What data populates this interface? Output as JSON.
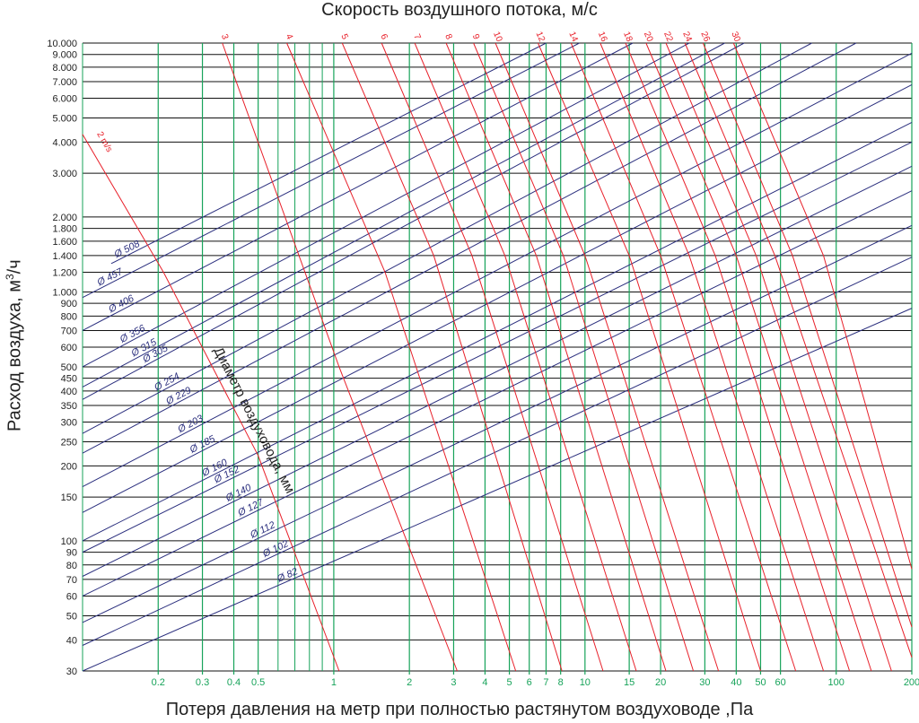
{
  "chart_data": {
    "type": "line",
    "title": "Скорость воздушного потока, м/с",
    "xlabel": "Потеря давления на метр при полностью растянутом воздуховоде ,Па",
    "ylabel": {
      "prefix": "Расход воздуха, м",
      "sup": "3",
      "suffix": "/ч"
    },
    "diameter_axis_label": "Диаметр воздуховода, мм",
    "x_scale": "log",
    "y_scale": "log",
    "xlim": [
      0.1,
      200
    ],
    "ylim": [
      30,
      10000
    ],
    "grid": true,
    "x_ticks": [
      0.2,
      0.3,
      0.4,
      0.5,
      1,
      2,
      3,
      4,
      5,
      6,
      7,
      8,
      10,
      15,
      20,
      30,
      40,
      50,
      60,
      100,
      200
    ],
    "x_minor_ticks": [
      0.6,
      0.7,
      0.8,
      0.9
    ],
    "y_ticks": [
      {
        "value": 30,
        "label": "30"
      },
      {
        "value": 40,
        "label": "40"
      },
      {
        "value": 50,
        "label": "50"
      },
      {
        "value": 60,
        "label": "60"
      },
      {
        "value": 70,
        "label": "70"
      },
      {
        "value": 80,
        "label": "80"
      },
      {
        "value": 90,
        "label": "90"
      },
      {
        "value": 100,
        "label": "100"
      },
      {
        "value": 150,
        "label": "150"
      },
      {
        "value": 200,
        "label": "200"
      },
      {
        "value": 250,
        "label": "250"
      },
      {
        "value": 300,
        "label": "300"
      },
      {
        "value": 350,
        "label": "350"
      },
      {
        "value": 400,
        "label": "400"
      },
      {
        "value": 450,
        "label": "450"
      },
      {
        "value": 500,
        "label": "500"
      },
      {
        "value": 600,
        "label": "600"
      },
      {
        "value": 700,
        "label": "700"
      },
      {
        "value": 800,
        "label": "800"
      },
      {
        "value": 900,
        "label": "900"
      },
      {
        "value": 1000,
        "label": "1.000"
      },
      {
        "value": 1200,
        "label": "1.200"
      },
      {
        "value": 1400,
        "label": "1.400"
      },
      {
        "value": 1600,
        "label": "1.600"
      },
      {
        "value": 1800,
        "label": "1.800"
      },
      {
        "value": 2000,
        "label": "2.000"
      },
      {
        "value": 3000,
        "label": "3.000"
      },
      {
        "value": 4000,
        "label": "4.000"
      },
      {
        "value": 5000,
        "label": "5.000"
      },
      {
        "value": 6000,
        "label": "6.000"
      },
      {
        "value": 7000,
        "label": "7.000"
      },
      {
        "value": 8000,
        "label": "8.000"
      },
      {
        "value": 9000,
        "label": "9.000"
      },
      {
        "value": 10000,
        "label": "10.000"
      }
    ],
    "velocity_series": [
      {
        "name": "2 m/s",
        "points": [
          [
            0.1,
            4300
          ],
          [
            0.21,
            1200
          ],
          [
            0.5,
            220
          ],
          [
            1.05,
            30
          ]
        ]
      },
      {
        "name": "3",
        "points": [
          [
            0.36,
            10000
          ],
          [
            1.05,
            500
          ],
          [
            3.1,
            30
          ]
        ]
      },
      {
        "name": "4",
        "points": [
          [
            0.65,
            10000
          ],
          [
            1.6,
            1200
          ],
          [
            5.3,
            30
          ]
        ]
      },
      {
        "name": "5",
        "points": [
          [
            1.08,
            10000
          ],
          [
            2.5,
            1400
          ],
          [
            8.1,
            30
          ]
        ]
      },
      {
        "name": "6",
        "points": [
          [
            1.55,
            10000
          ],
          [
            3.55,
            1400
          ],
          [
            11.8,
            30
          ]
        ]
      },
      {
        "name": "7",
        "points": [
          [
            2.1,
            10000
          ],
          [
            4.8,
            1400
          ],
          [
            16,
            30
          ]
        ]
      },
      {
        "name": "8",
        "points": [
          [
            2.8,
            10000
          ],
          [
            6.4,
            1400
          ],
          [
            21,
            30
          ]
        ]
      },
      {
        "name": "9",
        "points": [
          [
            3.6,
            10000
          ],
          [
            8.2,
            1400
          ],
          [
            27,
            30
          ]
        ]
      },
      {
        "name": "10",
        "points": [
          [
            4.4,
            10000
          ],
          [
            10,
            1400
          ],
          [
            34,
            30
          ]
        ]
      },
      {
        "name": "12",
        "points": [
          [
            6.5,
            10000
          ],
          [
            15,
            1400
          ],
          [
            50,
            30
          ]
        ]
      },
      {
        "name": "14",
        "points": [
          [
            8.8,
            10000
          ],
          [
            20,
            1400
          ],
          [
            69,
            30
          ]
        ]
      },
      {
        "name": "16",
        "points": [
          [
            11.5,
            10000
          ],
          [
            26,
            1400
          ],
          [
            89,
            30
          ]
        ]
      },
      {
        "name": "18",
        "points": [
          [
            14.5,
            10000
          ],
          [
            33,
            1400
          ],
          [
            113,
            30
          ]
        ]
      },
      {
        "name": "20",
        "points": [
          [
            17.5,
            10000
          ],
          [
            40,
            1400
          ],
          [
            138,
            30
          ]
        ]
      },
      {
        "name": "22",
        "points": [
          [
            21,
            10000
          ],
          [
            48,
            1400
          ],
          [
            166,
            30
          ]
        ]
      },
      {
        "name": "24",
        "points": [
          [
            25,
            10000
          ],
          [
            57,
            1400
          ],
          [
            200,
            34
          ]
        ]
      },
      {
        "name": "26",
        "points": [
          [
            29.5,
            10000
          ],
          [
            67,
            1400
          ],
          [
            200,
            45
          ]
        ]
      },
      {
        "name": "30",
        "points": [
          [
            39,
            10000
          ],
          [
            89,
            1400
          ],
          [
            200,
            77
          ]
        ]
      }
    ],
    "diameter_series": [
      {
        "name": "Ø 508",
        "points": [
          [
            0.13,
            1300
          ],
          [
            7,
            10000
          ]
        ]
      },
      {
        "name": "Ø 457",
        "points": [
          [
            0.1,
            950
          ],
          [
            9.5,
            10000
          ]
        ]
      },
      {
        "name": "Ø 406",
        "points": [
          [
            0.1,
            700
          ],
          [
            15.5,
            10000
          ]
        ]
      },
      {
        "name": "Ø 356",
        "points": [
          [
            0.1,
            500
          ],
          [
            26,
            10000
          ]
        ]
      },
      {
        "name": "Ø 315",
        "points": [
          [
            0.1,
            415
          ],
          [
            36,
            10000
          ]
        ]
      },
      {
        "name": "Ø 305",
        "points": [
          [
            0.1,
            370
          ],
          [
            43,
            10000
          ]
        ]
      },
      {
        "name": "Ø 254",
        "points": [
          [
            0.1,
            270
          ],
          [
            80,
            10000
          ]
        ]
      },
      {
        "name": "Ø 229",
        "points": [
          [
            0.1,
            225
          ],
          [
            120,
            10000
          ]
        ]
      },
      {
        "name": "Ø 203",
        "points": [
          [
            0.1,
            165
          ],
          [
            200,
            9100
          ]
        ]
      },
      {
        "name": "Ø 185",
        "points": [
          [
            0.1,
            130
          ],
          [
            200,
            6800
          ]
        ]
      },
      {
        "name": "Ø 160",
        "points": [
          [
            0.1,
            100
          ],
          [
            200,
            4800
          ]
        ]
      },
      {
        "name": "Ø 152",
        "points": [
          [
            0.1,
            90
          ],
          [
            200,
            4000
          ]
        ]
      },
      {
        "name": "Ø 140",
        "points": [
          [
            0.1,
            72
          ],
          [
            200,
            3200
          ]
        ]
      },
      {
        "name": "Ø 127",
        "points": [
          [
            0.1,
            60
          ],
          [
            200,
            2550
          ]
        ]
      },
      {
        "name": "Ø 112",
        "points": [
          [
            0.1,
            47
          ],
          [
            200,
            1850
          ]
        ]
      },
      {
        "name": "Ø 102",
        "points": [
          [
            0.1,
            38
          ],
          [
            200,
            1380
          ]
        ]
      },
      {
        "name": "Ø  82",
        "points": [
          [
            0.1,
            30
          ],
          [
            200,
            860
          ]
        ]
      }
    ]
  },
  "colors": {
    "velocity": "#e8202a",
    "diameter": "#2b2f7e",
    "x_grid": "#17a35a",
    "y_grid": "#111111",
    "ylabel_text": "#222222",
    "xlabel_text": "#17a35a"
  }
}
